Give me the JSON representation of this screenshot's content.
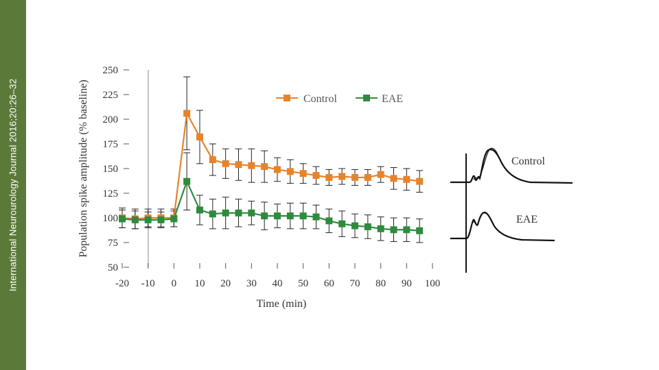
{
  "sidebar": {
    "citation": "International Neurourology Journal 2016;20:26–32"
  },
  "chart_data": {
    "type": "line",
    "title": "",
    "xlabel": "Time (min)",
    "ylabel": "Population spike amplitude (% baseline)",
    "xlim": [
      -20,
      100
    ],
    "ylim": [
      50,
      250
    ],
    "xticks": [
      -20,
      -10,
      0,
      10,
      20,
      30,
      40,
      50,
      60,
      70,
      80,
      90,
      100
    ],
    "yticks": [
      50,
      75,
      100,
      125,
      150,
      175,
      200,
      225,
      250
    ],
    "legend_position": "top-right",
    "x": [
      -20,
      -15,
      -10,
      -5,
      0,
      5,
      10,
      15,
      20,
      25,
      30,
      35,
      40,
      45,
      50,
      55,
      60,
      65,
      70,
      75,
      80,
      85,
      90,
      95
    ],
    "series": [
      {
        "name": "Control",
        "color": "#e8832a",
        "marker": "square",
        "values": [
          100,
          99,
          100,
          100,
          100,
          206,
          182,
          159,
          155,
          154,
          153,
          152,
          149,
          147,
          145,
          143,
          141,
          142,
          141,
          141,
          144,
          140,
          139,
          137
        ],
        "errors": [
          10,
          10,
          9,
          9,
          9,
          37,
          27,
          16,
          15,
          16,
          17,
          16,
          12,
          12,
          10,
          9,
          8,
          8,
          8,
          8,
          8,
          11,
          11,
          11
        ]
      },
      {
        "name": "EAE",
        "color": "#2e8b3e",
        "marker": "square",
        "values": [
          99,
          98,
          98,
          98,
          99,
          137,
          108,
          104,
          105,
          105,
          105,
          102,
          102,
          102,
          102,
          101,
          97,
          94,
          92,
          91,
          89,
          88,
          88,
          87
        ],
        "errors": [
          9,
          9,
          8,
          8,
          8,
          29,
          15,
          15,
          16,
          14,
          12,
          14,
          12,
          13,
          13,
          12,
          12,
          13,
          12,
          12,
          12,
          12,
          12,
          12
        ]
      }
    ]
  },
  "traces": {
    "labels": [
      "Control",
      "EAE"
    ]
  }
}
